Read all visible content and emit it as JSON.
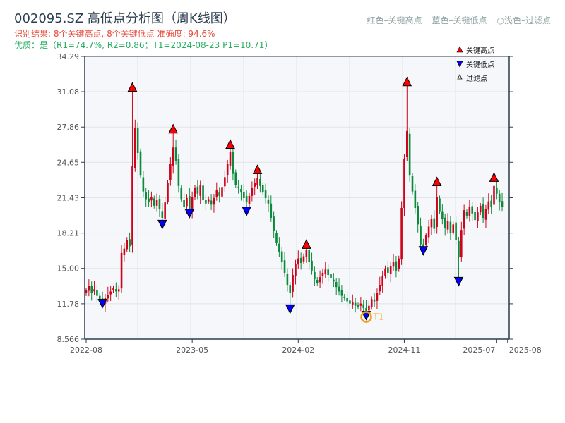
{
  "header": {
    "title": "002095.SZ 高低点分析图（周K线图）",
    "result_line": "识别结果: 8个关键高点, 8个关键低点  准确度: 94.6%",
    "quality_line": "优质：是（R1=74.7%, R2=0.86；T1=2024-08-23 P1=10.71）",
    "hint_red": "红色–关键高点",
    "hint_blue": "蓝色–关键低点",
    "hint_light": "○浅色–过滤点"
  },
  "colors": {
    "up": "#d0021b",
    "down": "#0a8a3a",
    "high_marker": "#ff0000",
    "low_marker": "#0000ff",
    "t1": "#f39c12",
    "plot_bg": "#f5f7fa",
    "axis": "#2c3e50"
  },
  "chart_data": {
    "type": "candlestick",
    "ylim": [
      8.566,
      34.29
    ],
    "yticks": [
      "34.29",
      "31.08",
      "27.86",
      "24.65",
      "21.43",
      "18.21",
      "15.00",
      "11.78",
      "8.566"
    ],
    "ytick_values": [
      34.29,
      31.08,
      27.86,
      24.65,
      21.43,
      18.21,
      15.0,
      11.78,
      8.566
    ],
    "xticks": [
      {
        "label": "2022-08",
        "week": 0
      },
      {
        "label": "2023-05",
        "week": 39
      },
      {
        "label": "2024-02",
        "week": 78
      },
      {
        "label": "2024-11",
        "week": 117
      },
      {
        "label": "2025-07",
        "week": 151
      },
      {
        "label": "2025-08",
        "week": 155
      }
    ],
    "closes": [
      13.0,
      13.4,
      12.8,
      13.1,
      12.5,
      12.2,
      11.9,
      12.3,
      12.6,
      12.9,
      13.2,
      12.9,
      13.1,
      16.4,
      16.8,
      17.6,
      17.0,
      24.3,
      27.8,
      25.5,
      23.5,
      22.0,
      21.3,
      21.0,
      21.5,
      20.7,
      21.2,
      20.4,
      19.6,
      21.0,
      22.8,
      24.5,
      26.0,
      24.8,
      22.5,
      21.3,
      20.6,
      21.4,
      20.3,
      21.5,
      22.3,
      21.8,
      22.6,
      21.2,
      20.9,
      21.3,
      20.8,
      21.4,
      22.1,
      21.6,
      22.4,
      23.3,
      24.5,
      25.6,
      23.6,
      22.6,
      22.3,
      21.9,
      21.4,
      21.0,
      21.6,
      22.3,
      22.8,
      23.2,
      22.5,
      21.9,
      21.4,
      20.9,
      19.6,
      18.4,
      17.3,
      16.5,
      15.6,
      14.6,
      13.5,
      12.8,
      14.4,
      15.4,
      15.9,
      15.5,
      16.1,
      16.7,
      15.6,
      14.8,
      14.0,
      13.7,
      14.2,
      14.6,
      14.9,
      14.4,
      14.1,
      13.8,
      13.3,
      12.9,
      12.5,
      12.3,
      12.0,
      11.8,
      11.9,
      11.6,
      11.5,
      11.8,
      11.4,
      11.1,
      11.6,
      12.2,
      12.0,
      12.8,
      13.5,
      14.3,
      15.0,
      14.6,
      15.2,
      15.6,
      14.8,
      15.9,
      20.5,
      25.0,
      27.5,
      23.5,
      22.0,
      20.5,
      19.0,
      17.2,
      17.0,
      18.0,
      18.8,
      19.5,
      18.6,
      21.5,
      20.2,
      19.5,
      18.7,
      19.3,
      18.2,
      19.0,
      17.6,
      16.0,
      18.5,
      20.3,
      19.8,
      20.6,
      20.0,
      19.4,
      20.1,
      20.7,
      19.6,
      20.4,
      21.1,
      20.6,
      22.5,
      21.8,
      21.0,
      20.6
    ],
    "key_highs": [
      {
        "week": 17,
        "price": 31.5
      },
      {
        "week": 32,
        "price": 27.7
      },
      {
        "week": 53,
        "price": 26.3
      },
      {
        "week": 63,
        "price": 24.0
      },
      {
        "week": 81,
        "price": 17.2
      },
      {
        "week": 118,
        "price": 32.0
      },
      {
        "week": 129,
        "price": 22.9
      },
      {
        "week": 150,
        "price": 23.3
      }
    ],
    "key_lows": [
      {
        "week": 6,
        "price": 11.8
      },
      {
        "week": 28,
        "price": 19.0
      },
      {
        "week": 38,
        "price": 20.0
      },
      {
        "week": 59,
        "price": 20.2
      },
      {
        "week": 75,
        "price": 11.3
      },
      {
        "week": 103,
        "price": 10.71
      },
      {
        "week": 124,
        "price": 16.6
      },
      {
        "week": 137,
        "price": 13.8
      }
    ],
    "t1": {
      "week": 103,
      "price": 10.71,
      "label": "T1"
    },
    "legend": {
      "high": "关键高点",
      "low": "关键低点",
      "filtered": "过滤点",
      "placement": "top-right"
    }
  }
}
